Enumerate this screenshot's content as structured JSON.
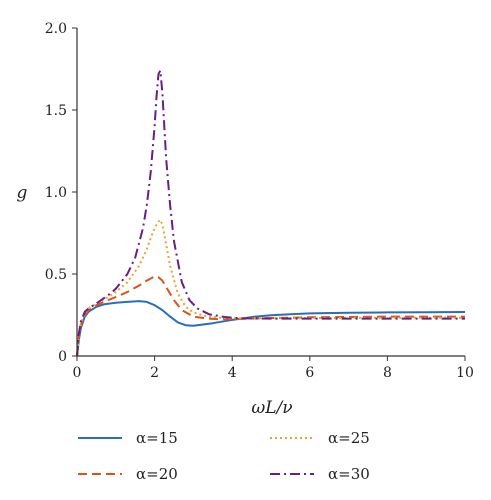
{
  "chart_data": {
    "type": "line",
    "xlabel": "ωL/ν",
    "ylabel": "g",
    "xlim": [
      0,
      10
    ],
    "ylim": [
      0,
      2.0
    ],
    "x_ticks": [
      "0",
      "2",
      "4",
      "6",
      "8",
      "10"
    ],
    "y_ticks": [
      "0",
      "0.5",
      "1.0",
      "1.5",
      "2.0"
    ],
    "grid": false,
    "legend_position": "bottom",
    "series": [
      {
        "name": "α=15",
        "color": "#2a6ebb",
        "style": "solid",
        "x": [
          0,
          0.05,
          0.1,
          0.2,
          0.3,
          0.5,
          0.7,
          1.0,
          1.3,
          1.6,
          1.8,
          2.0,
          2.2,
          2.4,
          2.6,
          2.8,
          3.0,
          3.2,
          3.5,
          3.8,
          4.0,
          4.3,
          4.6,
          5.0,
          5.5,
          6.0,
          7.0,
          8.0,
          9.0,
          10.0
        ],
        "values": [
          0,
          0.1,
          0.17,
          0.24,
          0.27,
          0.3,
          0.315,
          0.325,
          0.33,
          0.335,
          0.33,
          0.31,
          0.28,
          0.24,
          0.205,
          0.188,
          0.185,
          0.19,
          0.2,
          0.212,
          0.22,
          0.23,
          0.24,
          0.248,
          0.255,
          0.26,
          0.264,
          0.266,
          0.267,
          0.268
        ]
      },
      {
        "name": "α=20",
        "color": "#d9531e",
        "style": "dashed",
        "x": [
          0,
          0.05,
          0.1,
          0.2,
          0.3,
          0.5,
          0.8,
          1.0,
          1.3,
          1.6,
          1.8,
          2.0,
          2.1,
          2.2,
          2.3,
          2.5,
          2.7,
          3.0,
          3.3,
          3.6,
          4.0,
          4.5,
          5.0,
          6.0,
          7.0,
          8.0,
          9.0,
          10.0
        ],
        "values": [
          0,
          0.12,
          0.19,
          0.25,
          0.28,
          0.31,
          0.34,
          0.36,
          0.39,
          0.43,
          0.46,
          0.485,
          0.48,
          0.46,
          0.42,
          0.34,
          0.28,
          0.24,
          0.23,
          0.225,
          0.225,
          0.228,
          0.232,
          0.236,
          0.238,
          0.24,
          0.24,
          0.24
        ]
      },
      {
        "name": "α=25",
        "color": "#e6a532",
        "style": "dotted",
        "x": [
          0,
          0.05,
          0.1,
          0.2,
          0.3,
          0.5,
          0.8,
          1.0,
          1.3,
          1.6,
          1.8,
          1.9,
          2.0,
          2.1,
          2.15,
          2.2,
          2.3,
          2.4,
          2.6,
          2.8,
          3.0,
          3.3,
          3.6,
          4.0,
          5.0,
          6.0,
          8.0,
          10.0
        ],
        "values": [
          0,
          0.13,
          0.2,
          0.26,
          0.29,
          0.32,
          0.36,
          0.39,
          0.45,
          0.55,
          0.65,
          0.72,
          0.78,
          0.82,
          0.83,
          0.8,
          0.68,
          0.55,
          0.38,
          0.3,
          0.265,
          0.245,
          0.235,
          0.23,
          0.23,
          0.232,
          0.233,
          0.233
        ]
      },
      {
        "name": "α=30",
        "color": "#6a1e7f",
        "style": "dashdot",
        "x": [
          0,
          0.05,
          0.1,
          0.2,
          0.3,
          0.5,
          0.8,
          1.0,
          1.3,
          1.5,
          1.7,
          1.8,
          1.9,
          2.0,
          2.05,
          2.1,
          2.15,
          2.2,
          2.25,
          2.3,
          2.4,
          2.5,
          2.7,
          2.9,
          3.1,
          3.4,
          3.8,
          4.2,
          5.0,
          6.0,
          8.0,
          10.0
        ],
        "values": [
          0,
          0.14,
          0.21,
          0.27,
          0.29,
          0.32,
          0.37,
          0.41,
          0.5,
          0.6,
          0.78,
          0.92,
          1.12,
          1.4,
          1.58,
          1.72,
          1.74,
          1.6,
          1.4,
          1.2,
          0.92,
          0.7,
          0.45,
          0.34,
          0.29,
          0.255,
          0.238,
          0.23,
          0.228,
          0.228,
          0.228,
          0.228
        ]
      }
    ]
  }
}
